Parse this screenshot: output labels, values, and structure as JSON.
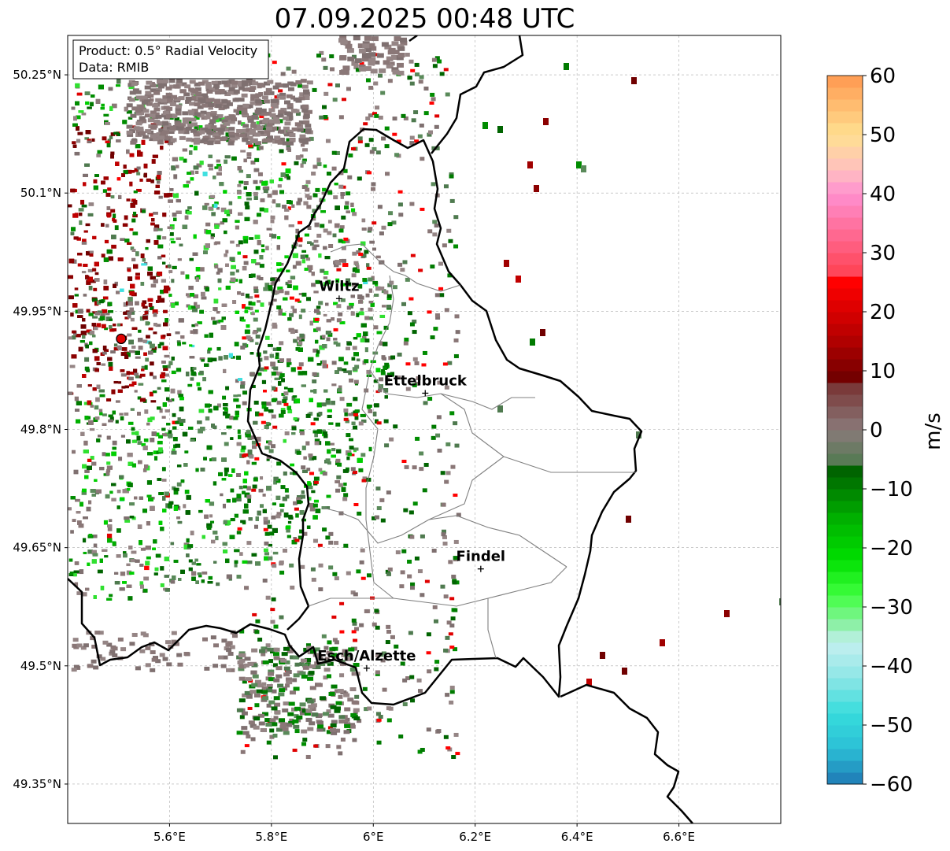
{
  "title": "07.09.2025 00:48 UTC",
  "info_box": {
    "line1": "Product: 0.5° Radial Velocity",
    "line2": "Data: RMIB"
  },
  "map": {
    "lon_range": [
      5.4,
      6.8
    ],
    "lat_range": [
      49.3,
      50.3
    ],
    "lon_ticks": [
      "5.6°E",
      "5.8°E",
      "6°E",
      "6.2°E",
      "6.4°E",
      "6.6°E"
    ],
    "lon_tick_values": [
      5.6,
      5.8,
      6.0,
      6.2,
      6.4,
      6.6
    ],
    "lat_ticks": [
      "50.25°N",
      "50.1°N",
      "49.95°N",
      "49.8°N",
      "49.65°N",
      "49.5°N",
      "49.35°N"
    ],
    "lat_tick_values": [
      50.25,
      50.1,
      49.95,
      49.8,
      49.65,
      49.5,
      49.35
    ],
    "grid": true,
    "radar_site": {
      "lon": 5.505,
      "lat": 49.915,
      "color": "#e00000"
    },
    "cities": [
      {
        "name": "Wiltz",
        "lon": 5.933,
        "lat": 49.966
      },
      {
        "name": "Ettelbruck",
        "lon": 6.102,
        "lat": 49.846
      },
      {
        "name": "Findel",
        "lon": 6.211,
        "lat": 49.623
      },
      {
        "name": "Esch/Alzette",
        "lon": 5.987,
        "lat": 49.497
      }
    ]
  },
  "colorbar": {
    "label": "m/s",
    "min": -60,
    "max": 60,
    "tick_labels": [
      "60",
      "50",
      "40",
      "30",
      "20",
      "10",
      "0",
      "−10",
      "−20",
      "−30",
      "−40",
      "−50",
      "−60"
    ],
    "tick_values": [
      60,
      50,
      40,
      30,
      20,
      10,
      0,
      -10,
      -20,
      -30,
      -40,
      -50,
      -60
    ],
    "stops": [
      {
        "v": -60,
        "c": "#1f78b4"
      },
      {
        "v": -54,
        "c": "#2bbfd6"
      },
      {
        "v": -48,
        "c": "#36dcdc"
      },
      {
        "v": -42,
        "c": "#8de6e6"
      },
      {
        "v": -36,
        "c": "#c4f0f0"
      },
      {
        "v": -33,
        "c": "#8ef0a8"
      },
      {
        "v": -28,
        "c": "#40ff40"
      },
      {
        "v": -22,
        "c": "#00e000"
      },
      {
        "v": -15,
        "c": "#00b000"
      },
      {
        "v": -7,
        "c": "#006400"
      },
      {
        "v": -6,
        "c": "#4f7a4f"
      },
      {
        "v": 0,
        "c": "#8a7a7a"
      },
      {
        "v": 7,
        "c": "#7a3a3a"
      },
      {
        "v": 8,
        "c": "#6a0000"
      },
      {
        "v": 15,
        "c": "#b00000"
      },
      {
        "v": 25,
        "c": "#ff0000"
      },
      {
        "v": 26,
        "c": "#ff4050"
      },
      {
        "v": 40,
        "c": "#ff90d0"
      },
      {
        "v": 44,
        "c": "#ffc0c0"
      },
      {
        "v": 50,
        "c": "#ffe090"
      },
      {
        "v": 60,
        "c": "#ff9850"
      }
    ]
  }
}
